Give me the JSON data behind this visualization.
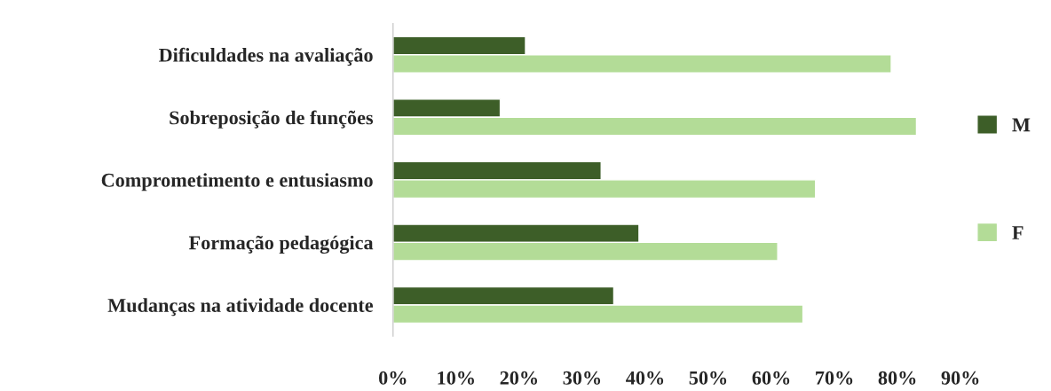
{
  "chart_data": {
    "type": "bar",
    "orientation": "horizontal",
    "categories": [
      "Dificuldades na avaliação",
      "Sobreposição de funções",
      "Comprometimento e entusiasmo",
      "Formação pedagógica",
      "Mudanças na atividade docente"
    ],
    "series": [
      {
        "name": "M",
        "color": "#3d5e28",
        "values": [
          21,
          17,
          33,
          39,
          35
        ]
      },
      {
        "name": "F",
        "color": "#b3dc97",
        "values": [
          79,
          83,
          67,
          61,
          65
        ]
      }
    ],
    "xlim": [
      0,
      90
    ],
    "xticks": [
      {
        "value": 0,
        "label": "0%"
      },
      {
        "value": 10,
        "label": "10%"
      },
      {
        "value": 20,
        "label": "20%"
      },
      {
        "value": 30,
        "label": "30%"
      },
      {
        "value": 40,
        "label": "40%"
      },
      {
        "value": 50,
        "label": "50%"
      },
      {
        "value": 60,
        "label": "60%"
      },
      {
        "value": 70,
        "label": "70%"
      },
      {
        "value": 80,
        "label": "80%"
      },
      {
        "value": 90,
        "label": "90%"
      }
    ],
    "grid": false,
    "legend": "right"
  }
}
